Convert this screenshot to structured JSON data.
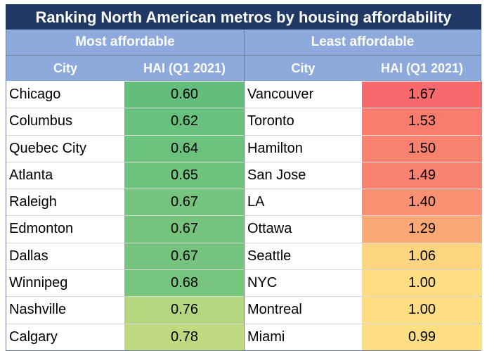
{
  "title": "Ranking North American metros by housing affordability",
  "chart_data": {
    "type": "table",
    "groups": [
      {
        "name": "Most affordable",
        "columns": [
          "City",
          "HAI (Q1 2021)"
        ],
        "rows": [
          {
            "city": "Chicago",
            "value": "0.60",
            "color": "#63be7b"
          },
          {
            "city": "Columbus",
            "value": "0.62",
            "color": "#67c07b"
          },
          {
            "city": "Quebec City",
            "value": "0.64",
            "color": "#6bc27c"
          },
          {
            "city": "Atlanta",
            "value": "0.65",
            "color": "#6fc37c"
          },
          {
            "city": "Raleigh",
            "value": "0.67",
            "color": "#74c47d"
          },
          {
            "city": "Edmonton",
            "value": "0.67",
            "color": "#74c47d"
          },
          {
            "city": "Dallas",
            "value": "0.67",
            "color": "#74c47d"
          },
          {
            "city": "Winnipeg",
            "value": "0.68",
            "color": "#77c57d"
          },
          {
            "city": "Nashville",
            "value": "0.76",
            "color": "#b3d67e"
          },
          {
            "city": "Calgary",
            "value": "0.78",
            "color": "#bfd97f"
          }
        ]
      },
      {
        "name": "Least affordable",
        "columns": [
          "City",
          "HAI (Q1 2021)"
        ],
        "rows": [
          {
            "city": "Vancouver",
            "value": "1.67",
            "color": "#f8696b"
          },
          {
            "city": "Toronto",
            "value": "1.53",
            "color": "#f97c6e"
          },
          {
            "city": "Hamilton",
            "value": "1.50",
            "color": "#f98170"
          },
          {
            "city": "San Jose",
            "value": "1.49",
            "color": "#f98370"
          },
          {
            "city": "LA",
            "value": "1.40",
            "color": "#fa9173"
          },
          {
            "city": "Ottawa",
            "value": "1.29",
            "color": "#fba877"
          },
          {
            "city": "Seattle",
            "value": "1.06",
            "color": "#fdd480"
          },
          {
            "city": "NYC",
            "value": "1.00",
            "color": "#fedc81"
          },
          {
            "city": "Montreal",
            "value": "1.00",
            "color": "#fedc81"
          },
          {
            "city": "Miami",
            "value": "0.99",
            "color": "#fede82"
          }
        ]
      }
    ]
  }
}
